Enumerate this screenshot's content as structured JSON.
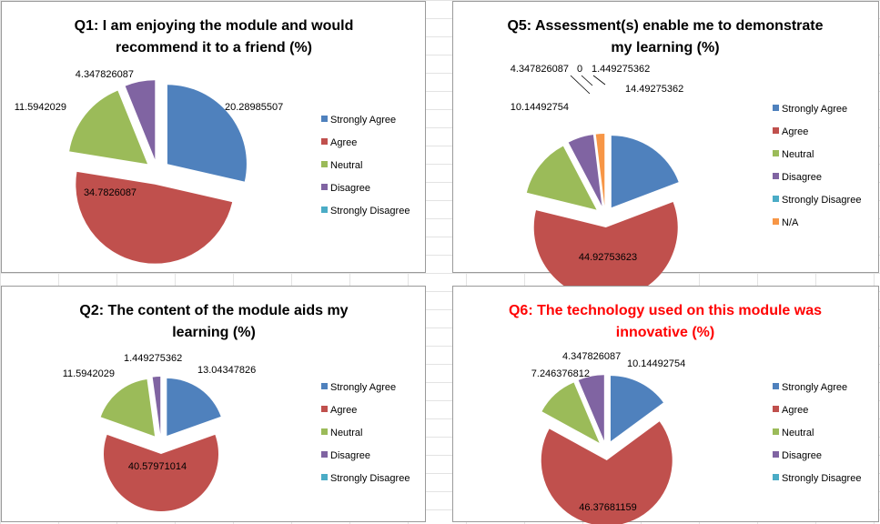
{
  "chart_data": [
    {
      "type": "pie",
      "title_lines": [
        "Q1: I am enjoying the module and would",
        "recommend it to a friend (%)"
      ],
      "title_color": "#000000",
      "categories": [
        "Strongly Agree",
        "Agree",
        "Neutral",
        "Disagree",
        "Strongly Disagree"
      ],
      "values": [
        20.28985507,
        34.7826087,
        11.5942029,
        4.347826087,
        0
      ],
      "value_labels": [
        "20.28985507",
        "34.7826087",
        "11.5942029",
        "4.347826087",
        ""
      ],
      "colors": [
        "#4f81bd",
        "#c0504d",
        "#9bbb59",
        "#8064a2",
        "#4bacc6"
      ],
      "legend": "right",
      "exploded": true
    },
    {
      "type": "pie",
      "title_lines": [
        "Q5: Assessment(s) enable me to demonstrate",
        "my learning (%)"
      ],
      "title_color": "#000000",
      "categories": [
        "Strongly Agree",
        "Agree",
        "Neutral",
        "Disagree",
        "Strongly Disagree",
        "N/A"
      ],
      "values": [
        14.49275362,
        44.92753623,
        10.14492754,
        4.347826087,
        0,
        1.449275362
      ],
      "value_labels": [
        "14.49275362",
        "44.92753623",
        "10.14492754",
        "4.347826087",
        "0",
        "1.449275362"
      ],
      "colors": [
        "#4f81bd",
        "#c0504d",
        "#9bbb59",
        "#8064a2",
        "#4bacc6",
        "#f79646"
      ],
      "legend": "right",
      "exploded": true
    },
    {
      "type": "pie",
      "title_lines": [
        "Q2: The content of the module aids my",
        "learning (%)"
      ],
      "title_color": "#000000",
      "categories": [
        "Strongly Agree",
        "Agree",
        "Neutral",
        "Disagree",
        "Strongly Disagree"
      ],
      "values": [
        13.04347826,
        40.57971014,
        11.5942029,
        1.449275362,
        0
      ],
      "value_labels": [
        "13.04347826",
        "40.57971014",
        "11.5942029",
        "1.449275362",
        ""
      ],
      "colors": [
        "#4f81bd",
        "#c0504d",
        "#9bbb59",
        "#8064a2",
        "#4bacc6"
      ],
      "legend": "right",
      "exploded": true
    },
    {
      "type": "pie",
      "title_lines": [
        "Q6: The technology used on this module was",
        "innovative (%)"
      ],
      "title_color": "#ff0000",
      "categories": [
        "Strongly Agree",
        "Agree",
        "Neutral",
        "Disagree",
        "Strongly Disagree"
      ],
      "values": [
        10.14492754,
        46.37681159,
        7.246376812,
        4.347826087,
        0
      ],
      "value_labels": [
        "10.14492754",
        "46.37681159",
        "7.246376812",
        "4.347826087",
        ""
      ],
      "colors": [
        "#4f81bd",
        "#c0504d",
        "#9bbb59",
        "#8064a2",
        "#4bacc6"
      ],
      "legend": "right",
      "exploded": true
    }
  ]
}
